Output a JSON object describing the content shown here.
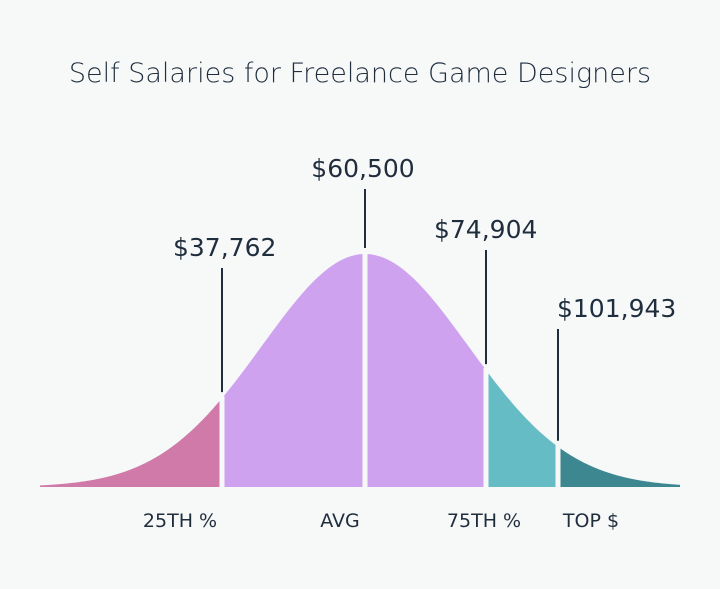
{
  "chart_data": {
    "type": "area",
    "title": "Self Salaries for Freelance Game Designers",
    "x": [
      37762,
      60500,
      74904,
      101943
    ],
    "categories": [
      "25TH %",
      "AVG",
      "75TH %",
      "TOP $"
    ],
    "value_labels": [
      "$37,762",
      "$60,500",
      "$74,904",
      "$101,943"
    ],
    "segments": [
      {
        "category": "below 25TH %",
        "color": "#cf7aa8"
      },
      {
        "category": "25TH % to AVG",
        "color": "#cfa2ef"
      },
      {
        "category": "AVG to 75TH %",
        "color": "#cfa2ef"
      },
      {
        "category": "75TH % to TOP $",
        "color": "#66bcc4"
      },
      {
        "category": "above TOP $",
        "color": "#3d8890"
      }
    ],
    "grid": false,
    "legend": "none"
  }
}
